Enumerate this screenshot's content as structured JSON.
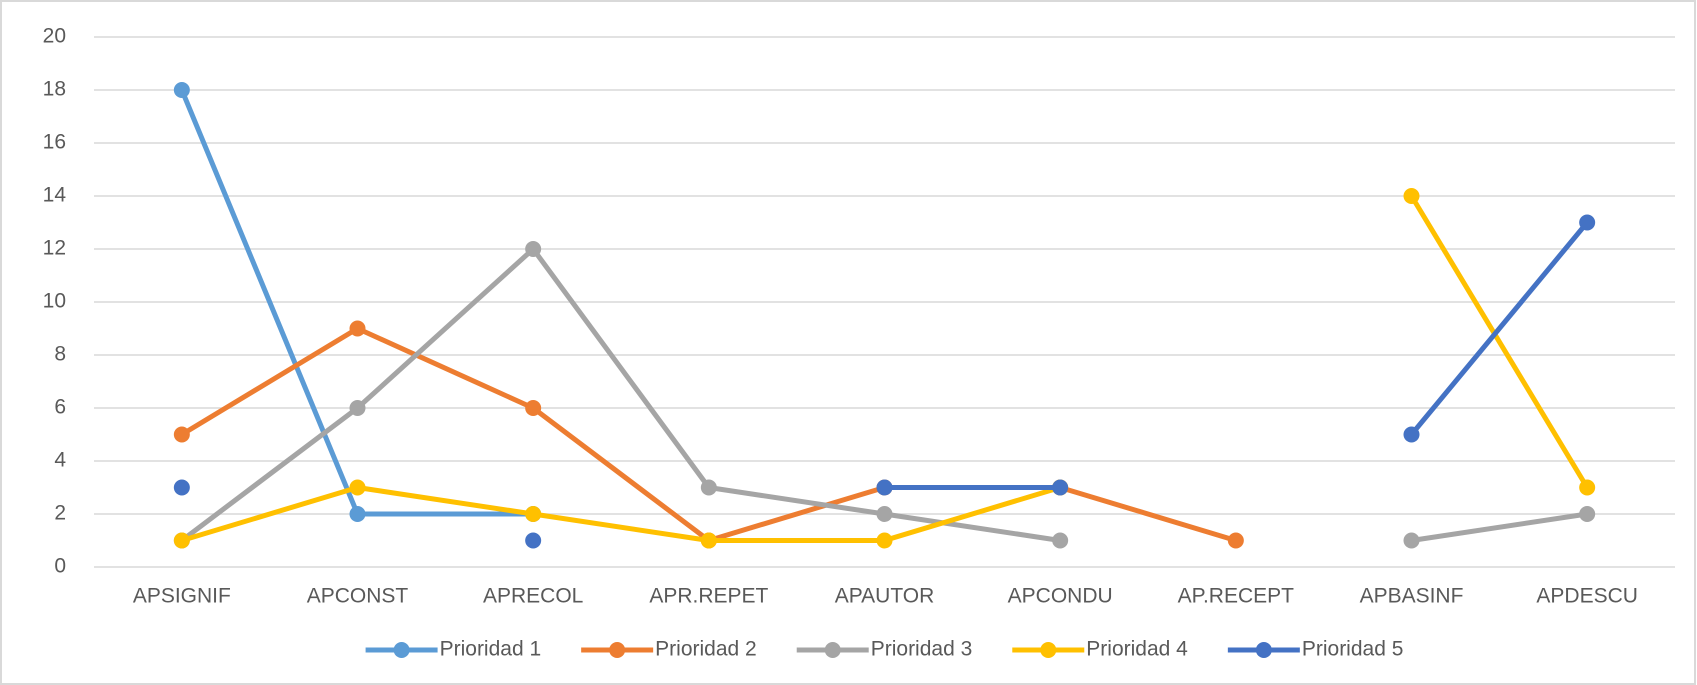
{
  "chart_data": {
    "type": "line",
    "categories": [
      "APSIGNIF",
      "APCONST",
      "APRECOL",
      "APR.REPET",
      "APAUTOR",
      "APCONDU",
      "AP.RECEPT",
      "APBASINF",
      "APDESCU"
    ],
    "series": [
      {
        "name": "Prioridad 1",
        "color": "#5b9bd5",
        "values": [
          18,
          2,
          2,
          null,
          null,
          null,
          null,
          null,
          null
        ]
      },
      {
        "name": "Prioridad 2",
        "color": "#ed7d31",
        "values": [
          5,
          9,
          6,
          1,
          3,
          3,
          1,
          null,
          null
        ]
      },
      {
        "name": "Prioridad 3",
        "color": "#a5a5a5",
        "values": [
          1,
          6,
          12,
          3,
          2,
          1,
          null,
          1,
          2
        ]
      },
      {
        "name": "Prioridad 4",
        "color": "#ffc000",
        "values": [
          1,
          3,
          2,
          1,
          1,
          3,
          null,
          14,
          3
        ]
      },
      {
        "name": "Prioridad 5",
        "color": "#4472c4",
        "values": [
          3,
          null,
          1,
          null,
          3,
          3,
          null,
          5,
          13
        ]
      }
    ],
    "ylim": [
      0,
      20
    ],
    "yticks": [
      0,
      2,
      4,
      6,
      8,
      10,
      12,
      14,
      16,
      18,
      20
    ],
    "grid": true,
    "legend": "bottom"
  }
}
